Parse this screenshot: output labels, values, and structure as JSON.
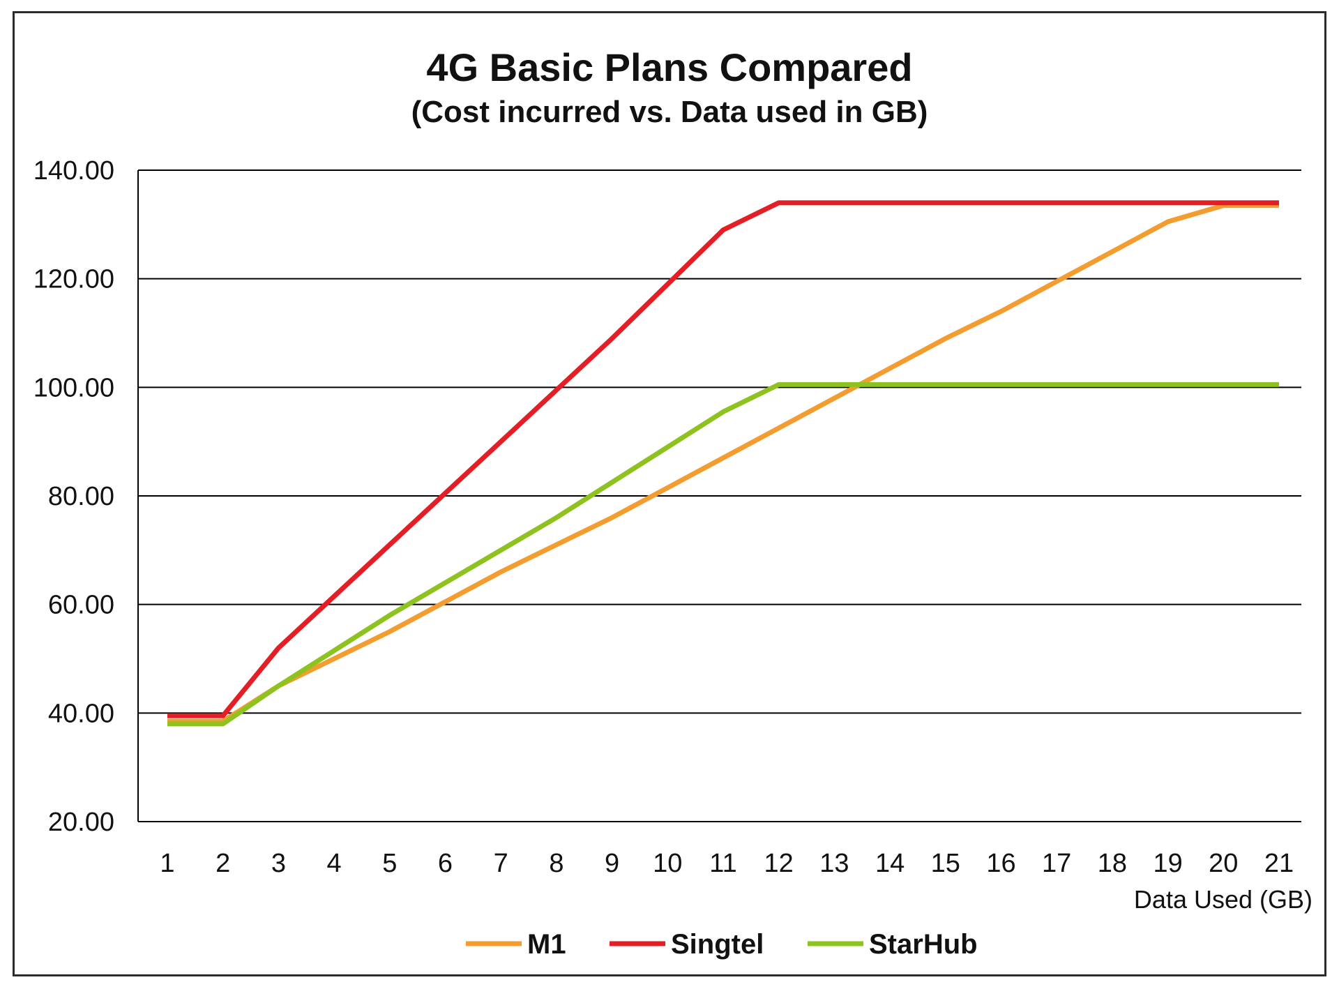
{
  "chart_data": {
    "type": "line",
    "title": "4G Basic Plans Compared",
    "subtitle": "(Cost incurred vs. Data used in GB)",
    "xlabel": "Data Used (GB)",
    "ylabel": "",
    "x": [
      1,
      2,
      3,
      4,
      5,
      6,
      7,
      8,
      9,
      10,
      11,
      12,
      13,
      14,
      15,
      16,
      17,
      18,
      19,
      20,
      21
    ],
    "xticks": [
      "1",
      "2",
      "3",
      "4",
      "5",
      "6",
      "7",
      "8",
      "9",
      "10",
      "11",
      "12",
      "13",
      "14",
      "15",
      "16",
      "17",
      "18",
      "19",
      "20",
      "21"
    ],
    "ylim": [
      20,
      140
    ],
    "yticks": [
      20,
      40,
      60,
      80,
      100,
      120,
      140
    ],
    "ytick_labels": [
      "20.00",
      "40.00",
      "60.00",
      "80.00",
      "100.00",
      "120.00",
      "140.00"
    ],
    "grid": true,
    "legend_position": "bottom",
    "series": [
      {
        "name": "M1",
        "color": "#F39C2F",
        "values": [
          38.5,
          38.5,
          45,
          50,
          55,
          60.5,
          66,
          71,
          76,
          81.5,
          87,
          92.5,
          98,
          103.5,
          109,
          114,
          119.5,
          125,
          130.5,
          133.5,
          133.5
        ]
      },
      {
        "name": "Singtel",
        "color": "#E31E24",
        "values": [
          39.5,
          39.5,
          52,
          61.5,
          71,
          80.5,
          90,
          99.5,
          109,
          119,
          129,
          134,
          134,
          134,
          134,
          134,
          134,
          134,
          134,
          134,
          134
        ]
      },
      {
        "name": "StarHub",
        "color": "#8DC21F",
        "values": [
          38,
          38,
          45,
          51.5,
          58,
          64,
          70,
          76,
          82.5,
          89,
          95.5,
          100.5,
          100.5,
          100.5,
          100.5,
          100.5,
          100.5,
          100.5,
          100.5,
          100.5,
          100.5
        ]
      }
    ]
  }
}
